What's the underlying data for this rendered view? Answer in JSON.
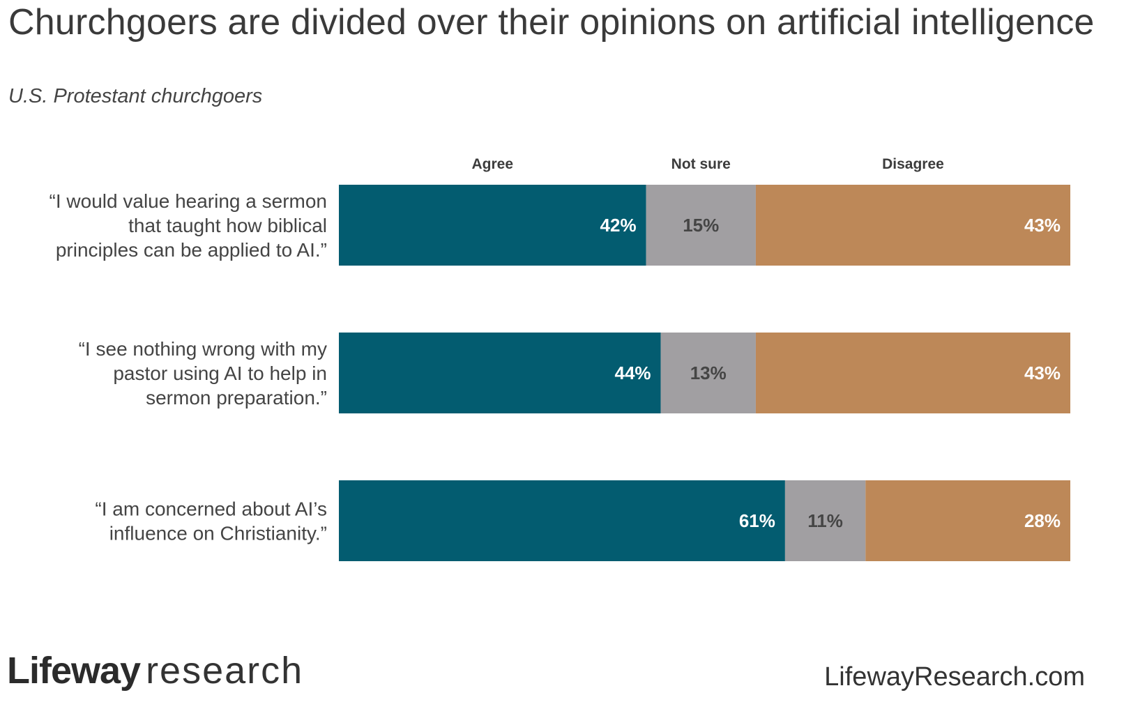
{
  "title": "Churchgoers are divided over their opinions on artificial intelligence",
  "subtitle": "U.S. Protestant churchgoers",
  "colors": {
    "agree": "#035c70",
    "not_sure": "#a19fa2",
    "disagree": "#bd8858"
  },
  "chart_data": {
    "type": "bar",
    "orientation": "horizontal",
    "stacked": true,
    "unit": "%",
    "xlim": [
      0,
      100
    ],
    "categories": [
      [
        "“I would value hearing a sermon",
        "that taught how biblical",
        "principles can be applied to AI.”"
      ],
      [
        "“I see nothing wrong with my",
        "pastor using AI to help in",
        "sermon preparation.”"
      ],
      [
        "“I am concerned about AI’s",
        "influence on Christianity.”"
      ]
    ],
    "series": [
      {
        "name": "Agree",
        "color_key": "agree",
        "label_color": "#ffffff",
        "values": [
          42,
          44,
          61
        ],
        "labels": [
          "42%",
          "44%",
          "61%"
        ]
      },
      {
        "name": "Not sure",
        "color_key": "not_sure",
        "label_color": "#454545",
        "values": [
          15,
          13,
          11
        ],
        "labels": [
          "15%",
          "13%",
          "11%"
        ]
      },
      {
        "name": "Disagree",
        "color_key": "disagree",
        "label_color": "#ffffff",
        "values": [
          43,
          43,
          28
        ],
        "labels": [
          "43%",
          "43%",
          "28%"
        ]
      }
    ],
    "legend_position": "top"
  },
  "footer": {
    "logo_brand": "Lifeway",
    "logo_word": "research",
    "url": "LifewayResearch.com"
  }
}
